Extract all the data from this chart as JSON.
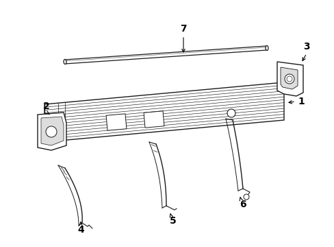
{
  "bg_color": "#ffffff",
  "line_color": "#1a1a1a",
  "figsize": [
    4.89,
    3.6
  ],
  "dpi": 100,
  "lw_main": 1.0,
  "lw_detail": 0.5,
  "lw_label": 0.7
}
